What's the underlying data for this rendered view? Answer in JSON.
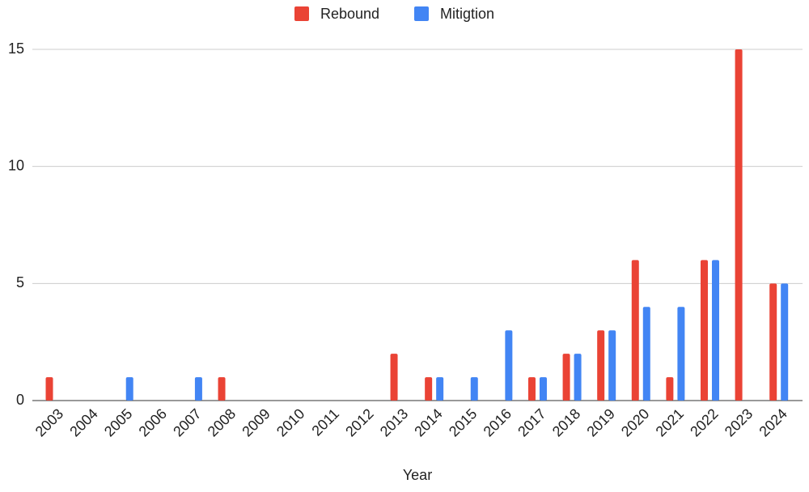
{
  "chart_data": {
    "type": "bar",
    "x_label": "Year",
    "categories": [
      "2003",
      "2004",
      "2005",
      "2006",
      "2007",
      "2008",
      "2009",
      "2010",
      "2011",
      "2012",
      "2013",
      "2014",
      "2015",
      "2016",
      "2017",
      "2018",
      "2019",
      "2020",
      "2021",
      "2022",
      "2023",
      "2024"
    ],
    "series": [
      {
        "name": "Rebound",
        "color": "#ea4335",
        "values": [
          1,
          0,
          0,
          0,
          0,
          1,
          0,
          0,
          0,
          0,
          2,
          1,
          0,
          0,
          1,
          2,
          3,
          6,
          1,
          6,
          15,
          5
        ]
      },
      {
        "name": "Mitigtion",
        "color": "#4285f4",
        "values": [
          0,
          0,
          1,
          0,
          1,
          0,
          0,
          0,
          0,
          0,
          0,
          1,
          1,
          3,
          1,
          2,
          3,
          4,
          4,
          6,
          0,
          5
        ]
      }
    ],
    "ylim": [
      0,
      15
    ],
    "yticks": [
      0,
      5,
      10,
      15
    ],
    "grid": true,
    "legend": "top"
  }
}
